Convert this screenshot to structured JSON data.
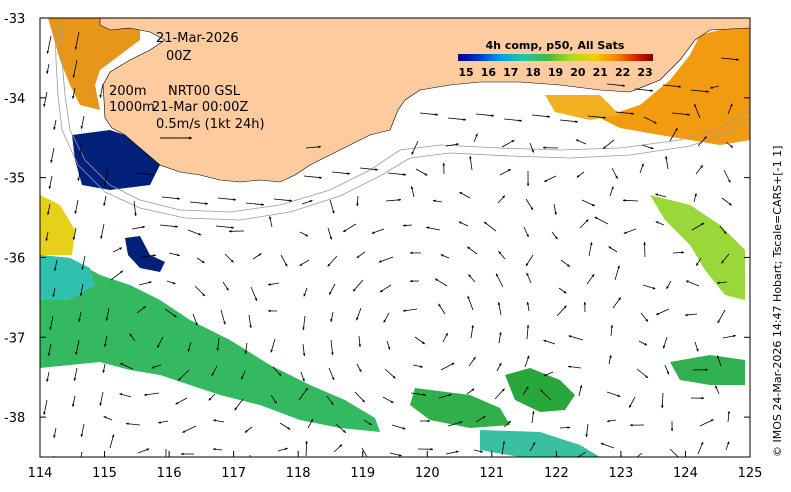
{
  "map": {
    "date_line1": "21-Mar-2026",
    "date_line2": "00Z",
    "contour_200": "200m",
    "contour_1000": "1000m",
    "product": "NRT00 GSL",
    "product_time": "21-Mar 00:00Z",
    "vector_scale_label": "0.5m/s (1kt 24h)",
    "side_credit": "© IMOS 24-Mar-2026 14:47 Hobart; Tscale=CARS+[-1 1]",
    "colors": {
      "land": "#fdcb9e",
      "ocean_nodata": "#ffffff",
      "arrow": "#000000",
      "bathy": "#9a9a9a"
    }
  },
  "colorbar": {
    "title": "4h comp, p50, All Sats",
    "ticks": [
      "15",
      "16",
      "17",
      "18",
      "19",
      "20",
      "21",
      "22",
      "23"
    ],
    "stops": [
      "#00007f",
      "#0030c8",
      "#00a0e8",
      "#20c8a0",
      "#40b840",
      "#b0d820",
      "#f0d000",
      "#f08000",
      "#d02000",
      "#800000"
    ]
  },
  "axes": {
    "x_ticks": [
      "114",
      "115",
      "116",
      "117",
      "118",
      "119",
      "120",
      "121",
      "122",
      "123",
      "124",
      "125"
    ],
    "y_ticks": [
      "-33",
      "-34",
      "-35",
      "-36",
      "-37",
      "-38"
    ],
    "x_range": [
      114,
      125
    ],
    "y_range": [
      -38.5,
      -33
    ]
  },
  "sst_patches": [
    {
      "name": "sst-patch-west-coast-warm",
      "color": "#e8961a"
    },
    {
      "name": "sst-patch-east-warm",
      "color": "#f29a10"
    },
    {
      "name": "sst-patch-cold-blue",
      "color": "#00207a"
    },
    {
      "name": "sst-patch-southwest-green",
      "color": "#34b860"
    },
    {
      "name": "sst-patch-south-green",
      "color": "#28a83a"
    },
    {
      "name": "sst-patch-yellow-west",
      "color": "#e6d018"
    },
    {
      "name": "sst-patch-east-lightgreen",
      "color": "#9ad83a"
    }
  ]
}
